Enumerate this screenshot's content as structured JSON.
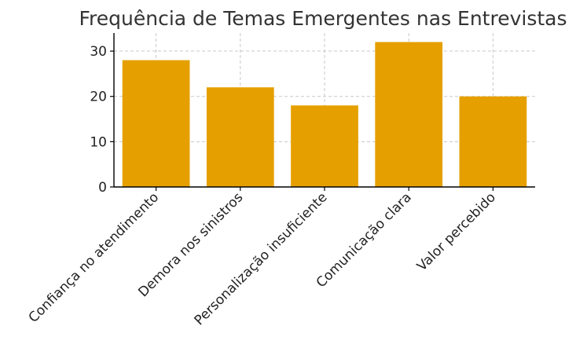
{
  "chart_data": {
    "type": "bar",
    "title": "Frequência de Temas Emergentes nas Entrevistas",
    "categories": [
      "Confiança no atendimento",
      "Demora nos sinistros",
      "Personalização insuficiente",
      "Comunicação clara",
      "Valor percebido"
    ],
    "values": [
      28,
      22,
      18,
      32,
      20
    ],
    "xlabel": "",
    "ylabel": "",
    "ylim": [
      0,
      34
    ],
    "yticks": [
      0,
      10,
      20,
      30
    ],
    "grid": true,
    "bar_color": "#E5A000"
  }
}
